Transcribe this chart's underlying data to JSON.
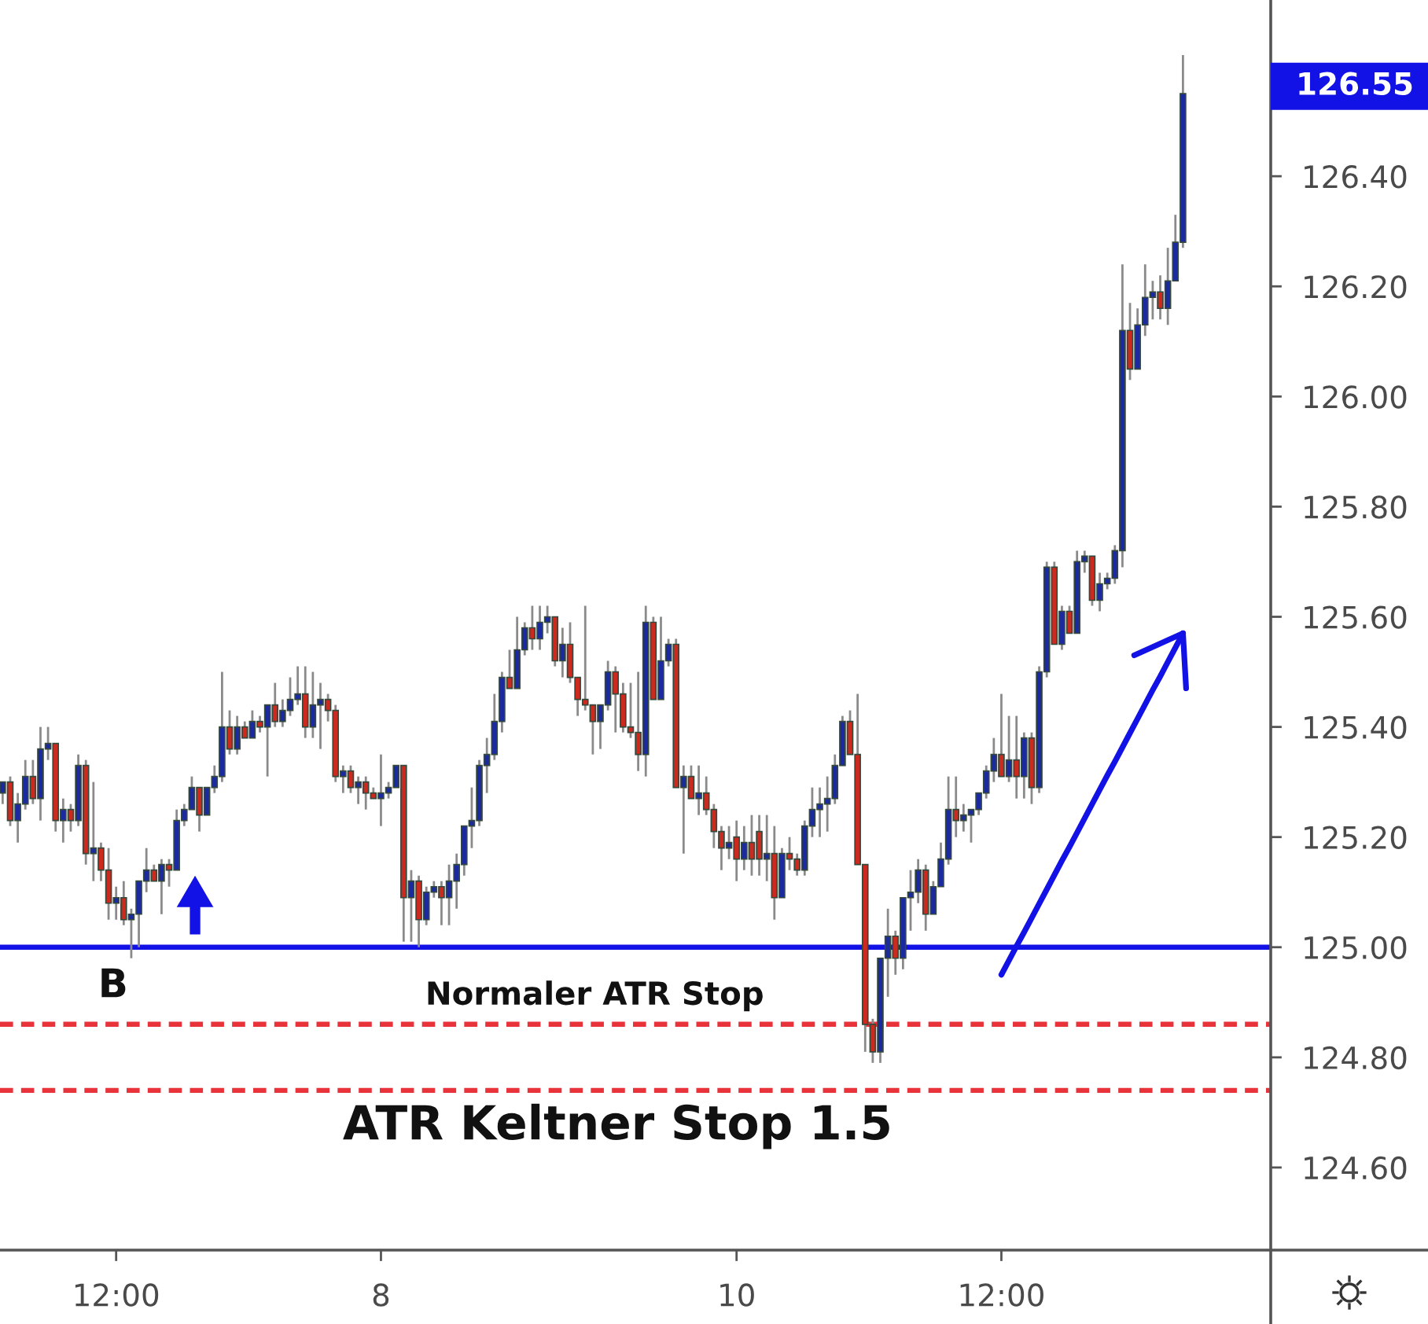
{
  "chart_data": {
    "type": "candlestick",
    "categories": [
      null,
      null,
      null,
      null,
      null,
      null,
      null,
      null,
      null,
      null,
      null,
      null,
      null,
      null,
      null,
      "12:00",
      null,
      null,
      null,
      null,
      null,
      null,
      null,
      null,
      null,
      null,
      null,
      null,
      null,
      null,
      null,
      null,
      null,
      null,
      null,
      null,
      null,
      null,
      null,
      null,
      null,
      null,
      null,
      null,
      null,
      null,
      null,
      null,
      null,
      null,
      "8",
      null,
      null,
      null,
      null,
      null,
      null,
      null,
      null,
      null,
      null,
      null,
      null,
      null,
      null,
      null,
      null,
      null,
      null,
      null,
      null,
      null,
      null,
      null,
      null,
      null,
      null,
      null,
      null,
      null,
      null,
      null,
      null,
      null,
      null,
      null,
      null,
      null,
      null,
      null,
      null,
      null,
      null,
      null,
      null,
      null,
      null,
      "10",
      null,
      null,
      null,
      null,
      null,
      null,
      null,
      null,
      null,
      null,
      null,
      null,
      null,
      null,
      null,
      null,
      null,
      null,
      null,
      null,
      null,
      null,
      null,
      null,
      null,
      null,
      null,
      null,
      null,
      null,
      null,
      null,
      null,
      null,
      "12:00",
      null,
      null,
      null,
      null,
      null,
      null,
      null,
      null,
      null,
      null,
      null,
      null,
      null,
      null,
      null,
      null,
      null,
      null,
      null,
      null,
      null,
      null,
      null,
      null
    ],
    "ohlc": [
      [
        125.28,
        125.3,
        125.26,
        125.3
      ],
      [
        125.3,
        125.31,
        125.22,
        125.23
      ],
      [
        125.23,
        125.28,
        125.19,
        125.26
      ],
      [
        125.26,
        125.34,
        125.25,
        125.31
      ],
      [
        125.31,
        125.34,
        125.26,
        125.27
      ],
      [
        125.27,
        125.4,
        125.23,
        125.36
      ],
      [
        125.36,
        125.4,
        125.34,
        125.37
      ],
      [
        125.37,
        125.37,
        125.21,
        125.23
      ],
      [
        125.23,
        125.27,
        125.19,
        125.25
      ],
      [
        125.25,
        125.26,
        125.21,
        125.23
      ],
      [
        125.23,
        125.35,
        125.22,
        125.33
      ],
      [
        125.33,
        125.34,
        125.15,
        125.17
      ],
      [
        125.17,
        125.3,
        125.12,
        125.18
      ],
      [
        125.18,
        125.19,
        125.12,
        125.14
      ],
      [
        125.14,
        125.18,
        125.05,
        125.08
      ],
      [
        125.08,
        125.11,
        125.05,
        125.09
      ],
      [
        125.09,
        125.12,
        125.04,
        125.05
      ],
      [
        125.05,
        125.07,
        124.98,
        125.06
      ],
      [
        125.06,
        125.12,
        125.0,
        125.12
      ],
      [
        125.12,
        125.18,
        125.1,
        125.14
      ],
      [
        125.14,
        125.15,
        125.12,
        125.12
      ],
      [
        125.12,
        125.16,
        125.06,
        125.15
      ],
      [
        125.15,
        125.16,
        125.11,
        125.14
      ],
      [
        125.14,
        125.25,
        125.14,
        125.23
      ],
      [
        125.23,
        125.26,
        125.22,
        125.25
      ],
      [
        125.25,
        125.31,
        125.25,
        125.29
      ],
      [
        125.29,
        125.29,
        125.21,
        125.24
      ],
      [
        125.24,
        125.29,
        125.24,
        125.29
      ],
      [
        125.29,
        125.33,
        125.28,
        125.31
      ],
      [
        125.31,
        125.5,
        125.3,
        125.4
      ],
      [
        125.4,
        125.43,
        125.35,
        125.36
      ],
      [
        125.36,
        125.42,
        125.35,
        125.4
      ],
      [
        125.4,
        125.41,
        125.38,
        125.38
      ],
      [
        125.38,
        125.43,
        125.38,
        125.41
      ],
      [
        125.41,
        125.42,
        125.39,
        125.4
      ],
      [
        125.4,
        125.44,
        125.31,
        125.44
      ],
      [
        125.44,
        125.48,
        125.4,
        125.41
      ],
      [
        125.41,
        125.45,
        125.4,
        125.43
      ],
      [
        125.43,
        125.49,
        125.42,
        125.45
      ],
      [
        125.45,
        125.51,
        125.44,
        125.46
      ],
      [
        125.46,
        125.51,
        125.38,
        125.4
      ],
      [
        125.4,
        125.5,
        125.38,
        125.44
      ],
      [
        125.44,
        125.48,
        125.36,
        125.45
      ],
      [
        125.45,
        125.46,
        125.41,
        125.43
      ],
      [
        125.43,
        125.44,
        125.3,
        125.31
      ],
      [
        125.31,
        125.33,
        125.28,
        125.32
      ],
      [
        125.32,
        125.33,
        125.28,
        125.29
      ],
      [
        125.29,
        125.31,
        125.26,
        125.3
      ],
      [
        125.3,
        125.31,
        125.25,
        125.28
      ],
      [
        125.28,
        125.29,
        125.27,
        125.27
      ],
      [
        125.27,
        125.35,
        125.22,
        125.28
      ],
      [
        125.28,
        125.3,
        125.27,
        125.29
      ],
      [
        125.29,
        125.33,
        125.29,
        125.33
      ],
      [
        125.33,
        125.33,
        125.01,
        125.09
      ],
      [
        125.09,
        125.14,
        125.01,
        125.12
      ],
      [
        125.12,
        125.13,
        125.0,
        125.05
      ],
      [
        125.05,
        125.11,
        125.04,
        125.1
      ],
      [
        125.1,
        125.12,
        125.09,
        125.11
      ],
      [
        125.11,
        125.12,
        125.04,
        125.09
      ],
      [
        125.09,
        125.15,
        125.04,
        125.12
      ],
      [
        125.12,
        125.17,
        125.07,
        125.15
      ],
      [
        125.15,
        125.22,
        125.13,
        125.22
      ],
      [
        125.22,
        125.29,
        125.18,
        125.23
      ],
      [
        125.23,
        125.34,
        125.22,
        125.33
      ],
      [
        125.33,
        125.38,
        125.28,
        125.35
      ],
      [
        125.35,
        125.46,
        125.34,
        125.41
      ],
      [
        125.41,
        125.5,
        125.39,
        125.49
      ],
      [
        125.49,
        125.54,
        125.47,
        125.47
      ],
      [
        125.47,
        125.6,
        125.47,
        125.54
      ],
      [
        125.54,
        125.59,
        125.53,
        125.58
      ],
      [
        125.58,
        125.62,
        125.54,
        125.56
      ],
      [
        125.56,
        125.62,
        125.54,
        125.59
      ],
      [
        125.59,
        125.62,
        125.57,
        125.6
      ],
      [
        125.6,
        125.6,
        125.51,
        125.52
      ],
      [
        125.52,
        125.58,
        125.49,
        125.55
      ],
      [
        125.55,
        125.59,
        125.48,
        125.49
      ],
      [
        125.49,
        125.49,
        125.42,
        125.45
      ],
      [
        125.45,
        125.62,
        125.43,
        125.44
      ],
      [
        125.44,
        125.44,
        125.35,
        125.41
      ],
      [
        125.41,
        125.44,
        125.36,
        125.44
      ],
      [
        125.44,
        125.52,
        125.43,
        125.5
      ],
      [
        125.5,
        125.51,
        125.39,
        125.46
      ],
      [
        125.46,
        125.48,
        125.39,
        125.4
      ],
      [
        125.4,
        125.48,
        125.38,
        125.39
      ],
      [
        125.39,
        125.5,
        125.32,
        125.35
      ],
      [
        125.35,
        125.62,
        125.31,
        125.59
      ],
      [
        125.59,
        125.6,
        125.45,
        125.45
      ],
      [
        125.45,
        125.6,
        125.45,
        125.52
      ],
      [
        125.52,
        125.56,
        125.51,
        125.55
      ],
      [
        125.55,
        125.56,
        125.29,
        125.29
      ],
      [
        125.29,
        125.33,
        125.17,
        125.31
      ],
      [
        125.31,
        125.33,
        125.27,
        125.27
      ],
      [
        125.27,
        125.33,
        125.24,
        125.28
      ],
      [
        125.28,
        125.31,
        125.24,
        125.25
      ],
      [
        125.25,
        125.26,
        125.18,
        125.21
      ],
      [
        125.21,
        125.22,
        125.14,
        125.18
      ],
      [
        125.18,
        125.22,
        125.16,
        125.19
      ],
      [
        125.2,
        125.23,
        125.12,
        125.16
      ],
      [
        125.16,
        125.22,
        125.14,
        125.19
      ],
      [
        125.19,
        125.24,
        125.13,
        125.16
      ],
      [
        125.21,
        125.24,
        125.13,
        125.16
      ],
      [
        125.16,
        125.24,
        125.12,
        125.17
      ],
      [
        125.17,
        125.22,
        125.05,
        125.09
      ],
      [
        125.09,
        125.18,
        125.09,
        125.17
      ],
      [
        125.17,
        125.2,
        125.14,
        125.16
      ],
      [
        125.16,
        125.17,
        125.13,
        125.14
      ],
      [
        125.14,
        125.23,
        125.13,
        125.22
      ],
      [
        125.22,
        125.29,
        125.2,
        125.25
      ],
      [
        125.25,
        125.29,
        125.2,
        125.26
      ],
      [
        125.26,
        125.31,
        125.21,
        125.27
      ],
      [
        125.27,
        125.35,
        125.26,
        125.33
      ],
      [
        125.33,
        125.42,
        125.33,
        125.41
      ],
      [
        125.41,
        125.43,
        125.35,
        125.35
      ],
      [
        125.35,
        125.46,
        125.15,
        125.15
      ],
      [
        125.15,
        125.15,
        124.81,
        124.86
      ],
      [
        124.86,
        124.87,
        124.79,
        124.81
      ],
      [
        124.81,
        124.98,
        124.79,
        124.98
      ],
      [
        124.98,
        125.07,
        124.91,
        125.02
      ],
      [
        125.02,
        125.03,
        124.95,
        124.98
      ],
      [
        124.98,
        125.09,
        124.96,
        125.09
      ],
      [
        125.09,
        125.14,
        125.03,
        125.1
      ],
      [
        125.1,
        125.16,
        125.08,
        125.14
      ],
      [
        125.14,
        125.15,
        125.03,
        125.06
      ],
      [
        125.06,
        125.12,
        125.06,
        125.11
      ],
      [
        125.11,
        125.19,
        125.11,
        125.16
      ],
      [
        125.16,
        125.31,
        125.15,
        125.25
      ],
      [
        125.25,
        125.31,
        125.2,
        125.23
      ],
      [
        125.23,
        125.26,
        125.21,
        125.24
      ],
      [
        125.24,
        125.25,
        125.19,
        125.25
      ],
      [
        125.25,
        125.28,
        125.24,
        125.28
      ],
      [
        125.28,
        125.33,
        125.27,
        125.32
      ],
      [
        125.32,
        125.38,
        125.3,
        125.35
      ],
      [
        125.35,
        125.46,
        125.31,
        125.31
      ],
      [
        125.31,
        125.42,
        125.3,
        125.34
      ],
      [
        125.34,
        125.42,
        125.27,
        125.31
      ],
      [
        125.31,
        125.39,
        125.27,
        125.38
      ],
      [
        125.38,
        125.39,
        125.26,
        125.29
      ],
      [
        125.29,
        125.51,
        125.28,
        125.5
      ],
      [
        125.5,
        125.7,
        125.49,
        125.69
      ],
      [
        125.69,
        125.7,
        125.55,
        125.55
      ],
      [
        125.55,
        125.62,
        125.54,
        125.61
      ],
      [
        125.61,
        125.62,
        125.57,
        125.57
      ],
      [
        125.57,
        125.72,
        125.57,
        125.7
      ],
      [
        125.7,
        125.72,
        125.68,
        125.71
      ],
      [
        125.71,
        125.71,
        125.62,
        125.63
      ],
      [
        125.63,
        125.68,
        125.61,
        125.66
      ],
      [
        125.66,
        125.68,
        125.65,
        125.67
      ],
      [
        125.67,
        125.73,
        125.66,
        125.72
      ],
      [
        125.72,
        126.24,
        125.69,
        126.12
      ],
      [
        126.12,
        126.17,
        126.03,
        126.05
      ],
      [
        126.05,
        126.16,
        126.05,
        126.13
      ],
      [
        126.13,
        126.24,
        126.11,
        126.18
      ],
      [
        126.18,
        126.21,
        126.14,
        126.19
      ],
      [
        126.19,
        126.22,
        126.14,
        126.16
      ],
      [
        126.16,
        126.27,
        126.13,
        126.21
      ],
      [
        126.21,
        126.33,
        126.21,
        126.28
      ],
      [
        126.28,
        126.62,
        126.27,
        126.55
      ]
    ],
    "colors": [
      "#1c2aa0",
      "#cc2a1e",
      "#1c2aa0",
      "#1c2aa0",
      "#cc2a1e",
      "#1c2aa0",
      "#1c2aa0",
      "#cc2a1e",
      "#1c2aa0",
      "#cc2a1e",
      "#1c2aa0",
      "#cc2a1e",
      "#1c2aa0",
      "#cc2a1e",
      "#cc2a1e",
      "#1c2aa0",
      "#cc2a1e",
      "#1c2aa0",
      "#1c2aa0",
      "#1c2aa0",
      "#cc2a1e",
      "#1c2aa0",
      "#cc2a1e",
      "#1c2aa0",
      "#1c2aa0",
      "#1c2aa0",
      "#cc2a1e",
      "#1c2aa0",
      "#1c2aa0",
      "#1c2aa0",
      "#cc2a1e",
      "#1c2aa0",
      "#cc2a1e",
      "#1c2aa0",
      "#cc2a1e",
      "#1c2aa0",
      "#cc2a1e",
      "#1c2aa0",
      "#1c2aa0",
      "#1c2aa0",
      "#cc2a1e",
      "#1c2aa0",
      "#1c2aa0",
      "#cc2a1e",
      "#cc2a1e",
      "#1c2aa0",
      "#cc2a1e",
      "#1c2aa0",
      "#cc2a1e",
      "#cc2a1e",
      "#1c2aa0",
      "#1c2aa0",
      "#1c2aa0",
      "#cc2a1e",
      "#1c2aa0",
      "#cc2a1e",
      "#1c2aa0",
      "#1c2aa0",
      "#cc2a1e",
      "#1c2aa0",
      "#1c2aa0",
      "#1c2aa0",
      "#1c2aa0",
      "#1c2aa0",
      "#1c2aa0",
      "#1c2aa0",
      "#1c2aa0",
      "#cc2a1e",
      "#1c2aa0",
      "#1c2aa0",
      "#cc2a1e",
      "#1c2aa0",
      "#1c2aa0",
      "#cc2a1e",
      "#1c2aa0",
      "#cc2a1e",
      "#cc2a1e",
      "#cc2a1e",
      "#cc2a1e",
      "#1c2aa0",
      "#1c2aa0",
      "#cc2a1e",
      "#cc2a1e",
      "#cc2a1e",
      "#cc2a1e",
      "#1c2aa0",
      "#cc2a1e",
      "#1c2aa0",
      "#1c2aa0",
      "#cc2a1e",
      "#1c2aa0",
      "#cc2a1e",
      "#1c2aa0",
      "#cc2a1e",
      "#cc2a1e",
      "#cc2a1e",
      "#1c2aa0",
      "#cc2a1e",
      "#1c2aa0",
      "#cc2a1e",
      "#cc2a1e",
      "#1c2aa0",
      "#cc2a1e",
      "#1c2aa0",
      "#cc2a1e",
      "#cc2a1e",
      "#1c2aa0",
      "#1c2aa0",
      "#1c2aa0",
      "#1c2aa0",
      "#1c2aa0",
      "#1c2aa0",
      "#cc2a1e",
      "#cc2a1e",
      "#cc2a1e",
      "#cc2a1e",
      "#1c2aa0",
      "#1c2aa0",
      "#cc2a1e",
      "#1c2aa0",
      "#1c2aa0",
      "#1c2aa0",
      "#cc2a1e",
      "#1c2aa0",
      "#1c2aa0",
      "#1c2aa0",
      "#cc2a1e",
      "#1c2aa0",
      "#1c2aa0",
      "#1c2aa0",
      "#1c2aa0",
      "#1c2aa0",
      "#cc2a1e",
      "#1c2aa0",
      "#cc2a1e",
      "#1c2aa0",
      "#cc2a1e",
      "#1c2aa0",
      "#1c2aa0",
      "#cc2a1e",
      "#1c2aa0",
      "#cc2a1e",
      "#1c2aa0",
      "#1c2aa0",
      "#cc2a1e",
      "#1c2aa0",
      "#1c2aa0",
      "#1c2aa0",
      "#1c2aa0",
      "#cc2a1e",
      "#1c2aa0",
      "#1c2aa0",
      "#1c2aa0",
      "#cc2a1e",
      "#1c2aa0",
      "#1c2aa0",
      "#1c2aa0"
    ],
    "series": [
      {
        "type": "line",
        "color": "#1212e6",
        "values": [
          null,
          null,
          null,
          null,
          null,
          null,
          null,
          null,
          null,
          null,
          null,
          null,
          null,
          null,
          null,
          null,
          null,
          null,
          null,
          null,
          null,
          null,
          null,
          null,
          null,
          null,
          null,
          null,
          null,
          null,
          null,
          null,
          null,
          null,
          null,
          null,
          null,
          null,
          null,
          null,
          null,
          null,
          null,
          null,
          null,
          null,
          null,
          null,
          null,
          null,
          null,
          null,
          null,
          null,
          null,
          null,
          null,
          null,
          null,
          null,
          null,
          null,
          null,
          null,
          null,
          null,
          null,
          null,
          null,
          null,
          null,
          null,
          null,
          null,
          null,
          null,
          null,
          null,
          null,
          null,
          null,
          null,
          null,
          null,
          null,
          null,
          null,
          null,
          null,
          null,
          null,
          null,
          null,
          null,
          null,
          null,
          null,
          null,
          null,
          null,
          null,
          null,
          null,
          null,
          null,
          null,
          null,
          null,
          null,
          null,
          null,
          null,
          null,
          null,
          null,
          null,
          null,
          null,
          null,
          null,
          null,
          null,
          null,
          null,
          null,
          null,
          null,
          null,
          null,
          null,
          null,
          null,
          124.95,
          124.976,
          125.002,
          125.027,
          125.053,
          125.079,
          125.105,
          125.131,
          125.157,
          125.182,
          125.208,
          125.234,
          125.26,
          125.286,
          125.312,
          125.337,
          125.363,
          125.389,
          125.415,
          125.441,
          125.467,
          125.492,
          125.518,
          125.544,
          125.57
        ]
      }
    ],
    "ylim": [
      124.45,
      126.72
    ],
    "yticks": [
      {
        "value": 124.6,
        "label": "124.60"
      },
      {
        "value": 124.8,
        "label": "124.80"
      },
      {
        "value": 125.0,
        "label": "125.00"
      },
      {
        "value": 125.2,
        "label": "125.20"
      },
      {
        "value": 125.4,
        "label": "125.40"
      },
      {
        "value": 125.6,
        "label": "125.60"
      },
      {
        "value": 125.8,
        "label": "125.80"
      },
      {
        "value": 126.0,
        "label": "126.00"
      },
      {
        "value": 126.2,
        "label": "126.20"
      },
      {
        "value": 126.4,
        "label": "126.40"
      }
    ],
    "ref_lines": [
      {
        "axis": "y",
        "value": 125.0,
        "color": "#1212e6",
        "line_style": "solid"
      },
      {
        "axis": "y",
        "value": 124.86,
        "label": "Normaler ATR Stop",
        "color": "#e8333a",
        "line_style": "dashed"
      },
      {
        "axis": "y",
        "value": 124.74,
        "label": "ATR Keltner Stop 1.5",
        "color": "#e8333a",
        "line_style": "dashed"
      }
    ],
    "annotations": [
      "B",
      "126.55"
    ]
  }
}
